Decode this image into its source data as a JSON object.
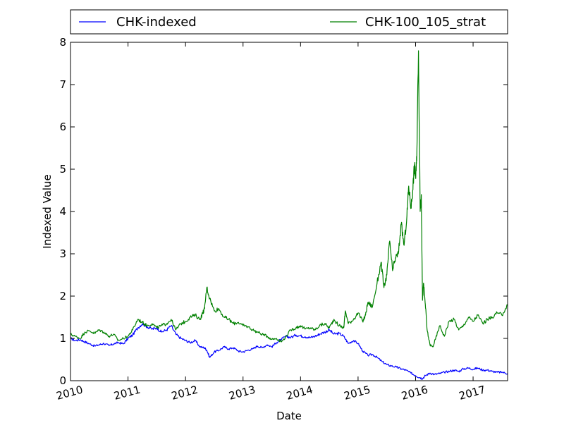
{
  "chart_data": {
    "type": "line",
    "xlabel": "Date",
    "ylabel": "Indexed Value",
    "xlim": [
      2010.0,
      2017.6
    ],
    "ylim": [
      0,
      8
    ],
    "x_ticks": [
      "2010",
      "2011",
      "2012",
      "2013",
      "2014",
      "2015",
      "2016",
      "2017"
    ],
    "y_ticks": [
      "0",
      "1",
      "2",
      "3",
      "4",
      "5",
      "6",
      "7",
      "8"
    ],
    "grid": false,
    "legend_position": "top, above plot",
    "series": [
      {
        "name": "CHK-indexed",
        "color": "#0000ff",
        "x": [
          2010.0,
          2010.08,
          2010.17,
          2010.25,
          2010.33,
          2010.42,
          2010.5,
          2010.58,
          2010.67,
          2010.75,
          2010.83,
          2010.92,
          2011.0,
          2011.08,
          2011.17,
          2011.25,
          2011.33,
          2011.42,
          2011.5,
          2011.58,
          2011.67,
          2011.75,
          2011.83,
          2011.92,
          2012.0,
          2012.08,
          2012.17,
          2012.25,
          2012.33,
          2012.37,
          2012.42,
          2012.5,
          2012.58,
          2012.67,
          2012.75,
          2012.83,
          2012.92,
          2013.0,
          2013.08,
          2013.17,
          2013.25,
          2013.33,
          2013.42,
          2013.5,
          2013.58,
          2013.67,
          2013.75,
          2013.83,
          2013.92,
          2014.0,
          2014.08,
          2014.17,
          2014.25,
          2014.33,
          2014.42,
          2014.5,
          2014.58,
          2014.67,
          2014.75,
          2014.83,
          2014.92,
          2015.0,
          2015.08,
          2015.17,
          2015.25,
          2015.33,
          2015.42,
          2015.5,
          2015.58,
          2015.67,
          2015.75,
          2015.83,
          2015.92,
          2016.0,
          2016.08,
          2016.12,
          2016.17,
          2016.25,
          2016.33,
          2016.42,
          2016.5,
          2016.58,
          2016.67,
          2016.75,
          2016.83,
          2016.92,
          2017.0,
          2017.08,
          2017.17,
          2017.25,
          2017.33,
          2017.42,
          2017.5,
          2017.6
        ],
        "y": [
          1.0,
          0.95,
          0.97,
          0.92,
          0.87,
          0.82,
          0.85,
          0.88,
          0.83,
          0.87,
          0.9,
          0.87,
          1.0,
          1.08,
          1.25,
          1.35,
          1.28,
          1.22,
          1.25,
          1.15,
          1.2,
          1.3,
          1.1,
          1.0,
          0.95,
          0.9,
          0.95,
          0.8,
          0.78,
          0.72,
          0.55,
          0.68,
          0.72,
          0.8,
          0.75,
          0.78,
          0.7,
          0.68,
          0.72,
          0.75,
          0.82,
          0.78,
          0.85,
          0.8,
          0.9,
          0.98,
          1.05,
          1.02,
          1.08,
          1.06,
          1.04,
          1.02,
          1.05,
          1.1,
          1.15,
          1.2,
          1.1,
          1.12,
          1.05,
          0.88,
          0.95,
          0.88,
          0.7,
          0.6,
          0.62,
          0.55,
          0.45,
          0.38,
          0.35,
          0.32,
          0.28,
          0.25,
          0.18,
          0.12,
          0.07,
          0.05,
          0.12,
          0.18,
          0.15,
          0.17,
          0.2,
          0.22,
          0.25,
          0.22,
          0.28,
          0.3,
          0.27,
          0.3,
          0.25,
          0.25,
          0.22,
          0.2,
          0.2,
          0.17
        ]
      },
      {
        "name": "CHK-100_105_strat",
        "color": "#008000",
        "x": [
          2010.0,
          2010.08,
          2010.17,
          2010.25,
          2010.33,
          2010.42,
          2010.5,
          2010.58,
          2010.67,
          2010.75,
          2010.83,
          2010.92,
          2011.0,
          2011.08,
          2011.17,
          2011.25,
          2011.33,
          2011.42,
          2011.5,
          2011.58,
          2011.67,
          2011.75,
          2011.83,
          2011.92,
          2012.0,
          2012.08,
          2012.17,
          2012.25,
          2012.3,
          2012.33,
          2012.37,
          2012.42,
          2012.5,
          2012.58,
          2012.67,
          2012.75,
          2012.83,
          2012.92,
          2013.0,
          2013.08,
          2013.17,
          2013.25,
          2013.33,
          2013.42,
          2013.5,
          2013.58,
          2013.67,
          2013.75,
          2013.83,
          2013.92,
          2014.0,
          2014.08,
          2014.17,
          2014.25,
          2014.33,
          2014.42,
          2014.5,
          2014.58,
          2014.67,
          2014.75,
          2014.78,
          2014.83,
          2014.92,
          2015.0,
          2015.08,
          2015.13,
          2015.17,
          2015.25,
          2015.33,
          2015.4,
          2015.45,
          2015.5,
          2015.55,
          2015.6,
          2015.65,
          2015.7,
          2015.75,
          2015.8,
          2015.85,
          2015.88,
          2015.92,
          2015.95,
          2015.98,
          2016.0,
          2016.02,
          2016.05,
          2016.08,
          2016.1,
          2016.12,
          2016.14,
          2016.17,
          2016.2,
          2016.25,
          2016.3,
          2016.35,
          2016.42,
          2016.5,
          2016.58,
          2016.67,
          2016.75,
          2016.83,
          2016.92,
          2017.0,
          2017.08,
          2017.17,
          2017.25,
          2017.33,
          2017.42,
          2017.5,
          2017.6
        ],
        "y": [
          1.1,
          1.05,
          1.0,
          1.15,
          1.18,
          1.12,
          1.2,
          1.15,
          1.05,
          1.1,
          0.95,
          1.0,
          1.05,
          1.2,
          1.45,
          1.38,
          1.3,
          1.35,
          1.25,
          1.3,
          1.35,
          1.45,
          1.2,
          1.35,
          1.4,
          1.5,
          1.55,
          1.45,
          1.6,
          1.7,
          2.2,
          1.95,
          1.65,
          1.7,
          1.5,
          1.45,
          1.35,
          1.38,
          1.3,
          1.28,
          1.2,
          1.15,
          1.1,
          1.05,
          0.98,
          1.0,
          0.92,
          1.05,
          1.2,
          1.25,
          1.3,
          1.22,
          1.25,
          1.2,
          1.3,
          1.35,
          1.25,
          1.45,
          1.3,
          1.25,
          1.65,
          1.35,
          1.45,
          1.6,
          1.4,
          1.55,
          1.85,
          1.75,
          2.3,
          2.8,
          2.2,
          2.5,
          3.3,
          2.6,
          2.9,
          3.0,
          3.7,
          3.2,
          3.9,
          4.6,
          4.1,
          4.5,
          5.1,
          4.8,
          5.2,
          7.8,
          4.0,
          4.4,
          1.9,
          2.3,
          1.8,
          1.2,
          0.85,
          0.8,
          1.0,
          1.3,
          1.05,
          1.4,
          1.45,
          1.2,
          1.3,
          1.5,
          1.4,
          1.55,
          1.35,
          1.45,
          1.5,
          1.6,
          1.55,
          1.8
        ]
      }
    ]
  }
}
